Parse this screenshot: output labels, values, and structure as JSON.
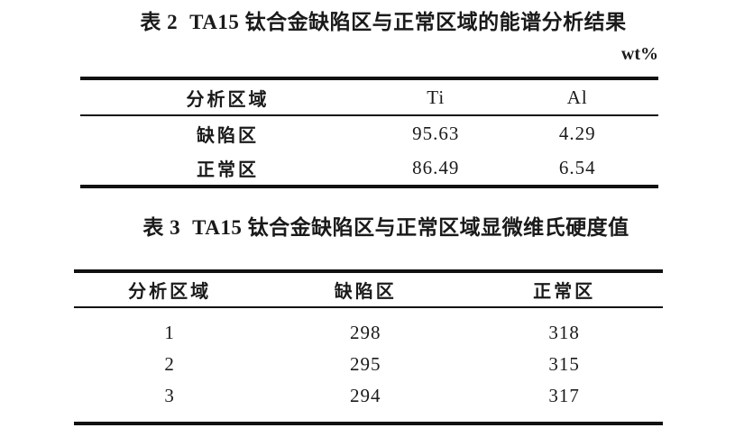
{
  "colors": {
    "background": "#ffffff",
    "text": "#1a1a1a",
    "rule": "#111111"
  },
  "table2": {
    "caption_label": "表 2",
    "caption_title": "TA15 钛合金缺陷区与正常区域的能谱分析结果",
    "unit": "wt%",
    "headers": [
      "分析区域",
      "Ti",
      "Al"
    ],
    "rows": [
      {
        "region": "缺陷区",
        "ti": "95.63",
        "al": "4.29"
      },
      {
        "region": "正常区",
        "ti": "86.49",
        "al": "6.54"
      }
    ]
  },
  "table3": {
    "caption_label": "表 3",
    "caption_title": "TA15 钛合金缺陷区与正常区域显微维氏硬度值",
    "headers": [
      "分析区域",
      "缺陷区",
      "正常区"
    ],
    "rows": [
      {
        "point": "1",
        "defect": "298",
        "normal": "318"
      },
      {
        "point": "2",
        "defect": "295",
        "normal": "315"
      },
      {
        "point": "3",
        "defect": "294",
        "normal": "317"
      }
    ]
  }
}
